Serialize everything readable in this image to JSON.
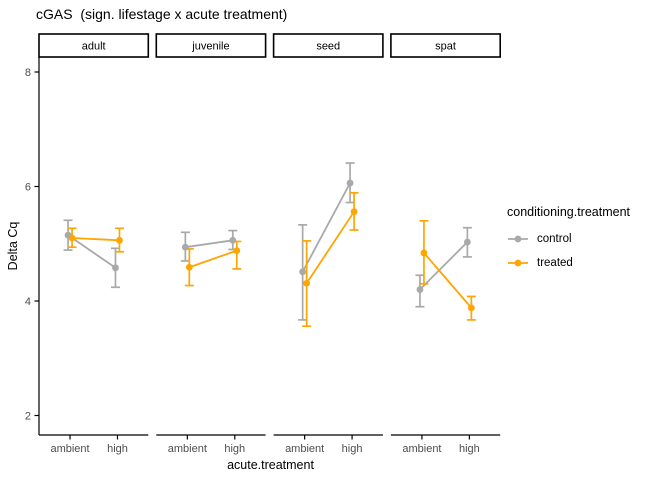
{
  "chart_data": {
    "type": "line",
    "title": "cGAS  (sign. lifestage x acute treatment)",
    "xlabel": "acute.treatment",
    "ylabel": "Delta Cq",
    "facets": [
      "adult",
      "juvenile",
      "seed",
      "spat"
    ],
    "x_categories": [
      "ambient",
      "high"
    ],
    "y_ticks": [
      2,
      4,
      6,
      8
    ],
    "ylim": [
      1.66,
      8.26
    ],
    "grid": false,
    "error_bars": true,
    "legend": {
      "title": "conditioning.treatment",
      "position": "right",
      "entries": [
        {
          "name": "control",
          "color": "#A9A9A9"
        },
        {
          "name": "treated",
          "color": "#FFA500"
        }
      ]
    },
    "series": [
      {
        "name": "control",
        "color": "#A9A9A9",
        "facets": {
          "adult": {
            "ambient": {
              "y": 5.15,
              "ymin": 4.89,
              "ymax": 5.41
            },
            "high": {
              "y": 4.58,
              "ymin": 4.24,
              "ymax": 4.92
            }
          },
          "juvenile": {
            "ambient": {
              "y": 4.94,
              "ymin": 4.7,
              "ymax": 5.2
            },
            "high": {
              "y": 5.06,
              "ymin": 4.9,
              "ymax": 5.23
            }
          },
          "seed": {
            "ambient": {
              "y": 4.51,
              "ymin": 3.67,
              "ymax": 5.33
            },
            "high": {
              "y": 6.06,
              "ymin": 5.72,
              "ymax": 6.41
            }
          },
          "spat": {
            "ambient": {
              "y": 4.2,
              "ymin": 3.9,
              "ymax": 4.45
            },
            "high": {
              "y": 5.03,
              "ymin": 4.77,
              "ymax": 5.28
            }
          }
        }
      },
      {
        "name": "treated",
        "color": "#FFA500",
        "facets": {
          "adult": {
            "ambient": {
              "y": 5.1,
              "ymin": 4.94,
              "ymax": 5.27
            },
            "high": {
              "y": 5.06,
              "ymin": 4.86,
              "ymax": 5.27
            }
          },
          "juvenile": {
            "ambient": {
              "y": 4.59,
              "ymin": 4.27,
              "ymax": 4.91
            },
            "high": {
              "y": 4.88,
              "ymin": 4.56,
              "ymax": 5.04
            }
          },
          "seed": {
            "ambient": {
              "y": 4.31,
              "ymin": 3.56,
              "ymax": 5.05
            },
            "high": {
              "y": 5.56,
              "ymin": 5.24,
              "ymax": 5.89
            }
          },
          "spat": {
            "ambient": {
              "y": 4.84,
              "ymin": 4.3,
              "ymax": 5.4
            },
            "high": {
              "y": 3.88,
              "ymin": 3.67,
              "ymax": 4.08
            }
          }
        }
      }
    ],
    "style": {
      "axis_text_color": "#4D4D4D",
      "axis_line_color": "#000000",
      "strip_fill": "#FFFFFF",
      "strip_border": "#000000"
    }
  }
}
